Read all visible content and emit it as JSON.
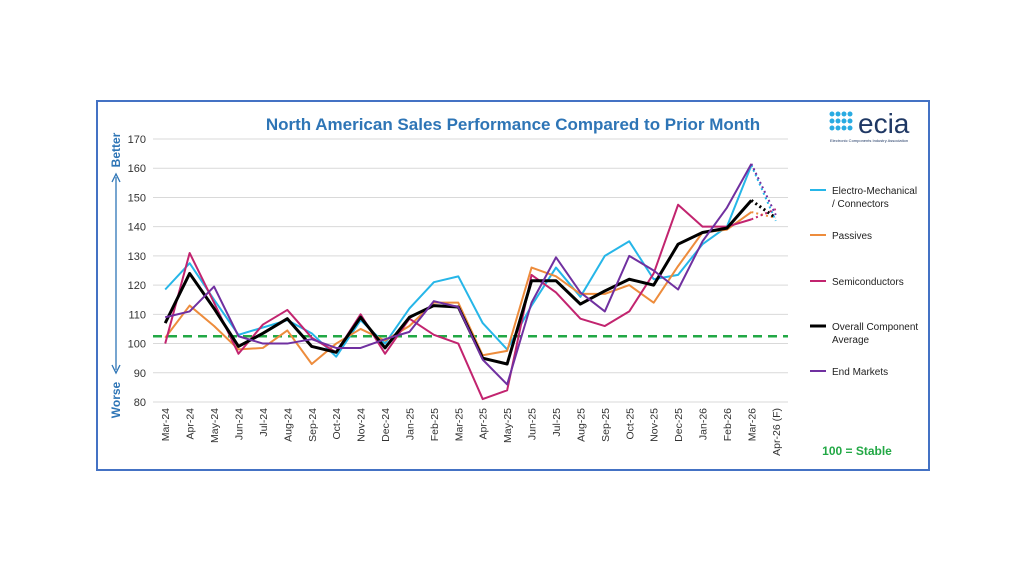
{
  "logo": {
    "name": "ecia",
    "tagline": "Electronic Components Industry Association",
    "color": "#29abe2"
  },
  "side_labels": {
    "top": "Better",
    "bottom": "Worse",
    "color": "#2e75b6"
  },
  "stable_note": "100 = Stable",
  "chart_data": {
    "type": "line",
    "title": "North American Sales Performance Compared to Prior Month",
    "xlabel": "",
    "ylabel": "",
    "ylim": [
      80,
      170
    ],
    "yticks": [
      80,
      90,
      100,
      110,
      120,
      130,
      140,
      150,
      160,
      170
    ],
    "grid": true,
    "legend_position": "right",
    "reference_line": {
      "value": 102.5,
      "style": "dashed",
      "color": "#22a845"
    },
    "x": [
      "Mar-24",
      "Apr-24",
      "May-24",
      "Jun-24",
      "Jul-24",
      "Aug-24",
      "Sep-24",
      "Oct-24",
      "Nov-24",
      "Dec-24",
      "Jan-25",
      "Feb-25",
      "Mar-25",
      "Apr-25",
      "May-25",
      "Jun-25",
      "Jul-25",
      "Aug-25",
      "Sep-25",
      "Oct-25",
      "Nov-25",
      "Dec-25",
      "Jan-26",
      "Feb-26",
      "Mar-26",
      "Apr-26 (F)"
    ],
    "series": [
      {
        "name": "Electro-Mechanical / Connectors",
        "color": "#26b6e8",
        "values": [
          118.5,
          127.5,
          115,
          103,
          105.5,
          108,
          103.5,
          95.5,
          108,
          100,
          112,
          121,
          123,
          107,
          98,
          113,
          126,
          116,
          130,
          135,
          122,
          123.5,
          134,
          140,
          161,
          142
        ]
      },
      {
        "name": "Passives",
        "color": "#ed8c3c",
        "values": [
          102,
          113,
          106,
          98,
          98.5,
          104.5,
          93,
          100,
          105,
          101,
          106,
          114,
          114,
          96,
          97.5,
          126,
          123,
          117,
          117,
          120,
          114,
          126.5,
          138,
          139,
          145,
          143
        ]
      },
      {
        "name": "Semiconductors",
        "color": "#c2246f",
        "values": [
          100,
          131,
          114,
          96.5,
          106.5,
          111.5,
          102,
          97,
          110,
          96.5,
          108.5,
          103,
          100,
          81,
          84,
          123.5,
          117.5,
          108.5,
          106,
          111,
          124,
          147.5,
          140,
          140,
          142.5,
          146
        ]
      },
      {
        "name": "Overall Component Average",
        "color": "#000000",
        "values": [
          107,
          124,
          112,
          99,
          103.5,
          108.5,
          99,
          97,
          109,
          98.5,
          109,
          113,
          112.5,
          95,
          93,
          121.5,
          121.5,
          113.5,
          118,
          122,
          120,
          134,
          138,
          139.5,
          149,
          143
        ]
      },
      {
        "name": "End Markets",
        "color": "#7030a0",
        "values": [
          109,
          111,
          119.5,
          102.5,
          100,
          100,
          101.5,
          98.5,
          98.5,
          101.5,
          104,
          114.5,
          112.5,
          94.5,
          86,
          114,
          129.5,
          117.5,
          111,
          130,
          125,
          118.5,
          135,
          146.5,
          161.5,
          144
        ]
      }
    ]
  }
}
